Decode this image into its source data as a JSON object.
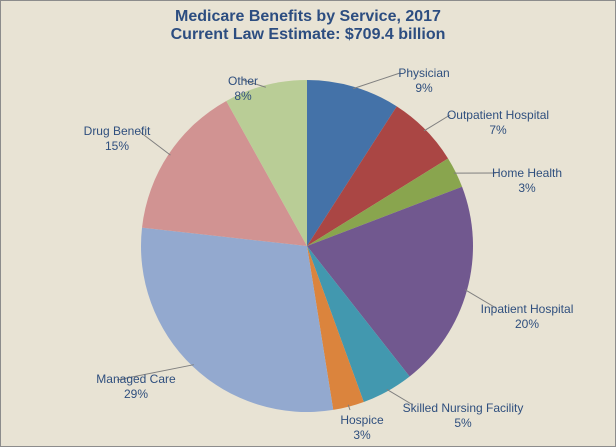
{
  "chart_data": {
    "type": "pie",
    "title": "Medicare Benefits by Service, 2017",
    "subtitle": "Current Law Estimate: $709.4 billion",
    "start_angle": "top",
    "direction": "clockwise",
    "slices": [
      {
        "label": "Physician",
        "value": 9,
        "pct_label": "9%",
        "color": "#4472a8"
      },
      {
        "label": "Outpatient Hospital",
        "value": 7,
        "pct_label": "7%",
        "color": "#aa4644"
      },
      {
        "label": "Home Health",
        "value": 3,
        "pct_label": "3%",
        "color": "#89a54e"
      },
      {
        "label": "Inpatient Hospital",
        "value": 20,
        "pct_label": "20%",
        "color": "#71588f"
      },
      {
        "label": "Skilled Nursing Facility",
        "value": 5,
        "pct_label": "5%",
        "color": "#4298af"
      },
      {
        "label": "Hospice",
        "value": 3,
        "pct_label": "3%",
        "color": "#db843d"
      },
      {
        "label": "Managed Care",
        "value": 29,
        "pct_label": "29%",
        "color": "#93a9cf"
      },
      {
        "label": "Drug Benefit",
        "value": 15,
        "pct_label": "15%",
        "color": "#d19392"
      },
      {
        "label": "Other",
        "value": 8,
        "pct_label": "8%",
        "color": "#b9cd96"
      }
    ]
  }
}
